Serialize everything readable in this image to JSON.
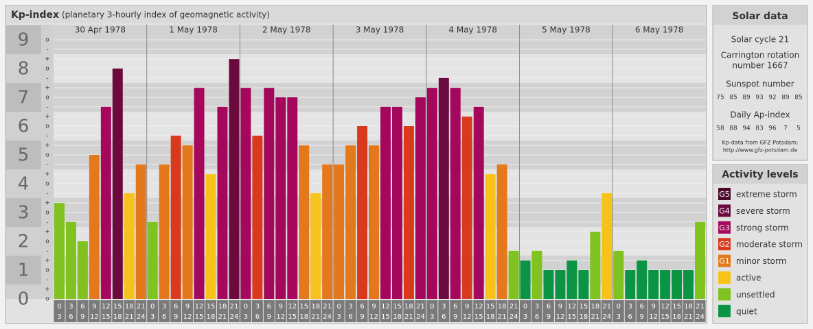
{
  "header": {
    "title": "Kp-index",
    "subtitle": "(planetary 3-hourly index of geomagnetic activity)"
  },
  "chart_data": {
    "type": "bar",
    "days": [
      "30 Apr 1978",
      "1 May 1978",
      "2 May 1978",
      "3 May 1978",
      "4 May 1978",
      "5 May 1978",
      "6 May 1978"
    ],
    "hour_ranges": [
      [
        "0",
        "3"
      ],
      [
        "3",
        "6"
      ],
      [
        "6",
        "9"
      ],
      [
        "9",
        "12"
      ],
      [
        "12",
        "15"
      ],
      [
        "15",
        "18"
      ],
      [
        "18",
        "21"
      ],
      [
        "21",
        "24"
      ]
    ],
    "values": [
      3.33,
      2.67,
      2,
      5,
      6.67,
      8,
      3.67,
      4.67,
      2.67,
      4.67,
      5.67,
      5.33,
      7.33,
      4.33,
      6.67,
      8.33,
      7.33,
      5.67,
      7.33,
      7,
      7,
      5.33,
      3.67,
      4.67,
      4.67,
      5.33,
      6,
      5.33,
      6.67,
      6.67,
      6,
      7,
      7.33,
      7.67,
      7.33,
      6.33,
      6.67,
      4.33,
      4.67,
      1.67,
      1.33,
      1.67,
      1,
      1,
      1.33,
      1,
      2.33,
      3.67,
      1.67,
      1,
      1.33,
      1,
      1,
      1,
      1,
      2.67
    ],
    "colors": [
      "#80c21f",
      "#80c21f",
      "#80c21f",
      "#e4781c",
      "#a4075b",
      "#6b0a3f",
      "#f7c31b",
      "#e4781c",
      "#80c21f",
      "#e4781c",
      "#d93a1e",
      "#e4781c",
      "#a4075b",
      "#f7c31b",
      "#a4075b",
      "#6b0a3f",
      "#a4075b",
      "#d93a1e",
      "#a4075b",
      "#a4075b",
      "#a4075b",
      "#e4781c",
      "#f7c31b",
      "#e4781c",
      "#e4781c",
      "#e4781c",
      "#d93a1e",
      "#e4781c",
      "#a4075b",
      "#a4075b",
      "#d93a1e",
      "#a4075b",
      "#a4075b",
      "#6b0a3f",
      "#a4075b",
      "#d93a1e",
      "#a4075b",
      "#f7c31b",
      "#e4781c",
      "#80c21f",
      "#0b9444",
      "#80c21f",
      "#0b9444",
      "#0b9444",
      "#0b9444",
      "#0b9444",
      "#80c21f",
      "#f7c31b",
      "#80c21f",
      "#0b9444",
      "#0b9444",
      "#0b9444",
      "#0b9444",
      "#0b9444",
      "#0b9444",
      "#80c21f"
    ],
    "ylim": [
      0,
      9
    ],
    "yticks": [
      0,
      1,
      2,
      3,
      4,
      5,
      6,
      7,
      8,
      9
    ],
    "minor_yticks": [
      {
        "value": 0,
        "label": "o"
      },
      {
        "value": 0.33,
        "label": "+"
      },
      {
        "value": 0.67,
        "label": "-"
      },
      {
        "value": 1,
        "label": "o"
      },
      {
        "value": 1.33,
        "label": "+"
      },
      {
        "value": 1.67,
        "label": "-"
      },
      {
        "value": 2,
        "label": "o"
      },
      {
        "value": 2.33,
        "label": "+"
      },
      {
        "value": 2.67,
        "label": "-"
      },
      {
        "value": 3,
        "label": "o"
      },
      {
        "value": 3.33,
        "label": "+"
      },
      {
        "value": 3.67,
        "label": "-"
      },
      {
        "value": 4,
        "label": "o"
      },
      {
        "value": 4.33,
        "label": "+"
      },
      {
        "value": 4.67,
        "label": "-"
      },
      {
        "value": 5,
        "label": "o"
      },
      {
        "value": 5.33,
        "label": "+"
      },
      {
        "value": 5.67,
        "label": "-"
      },
      {
        "value": 6,
        "label": "o"
      },
      {
        "value": 6.33,
        "label": "+"
      },
      {
        "value": 6.67,
        "label": "-"
      },
      {
        "value": 7,
        "label": "o"
      },
      {
        "value": 7.33,
        "label": "+"
      },
      {
        "value": 7.67,
        "label": "-"
      },
      {
        "value": 8,
        "label": "o"
      },
      {
        "value": 8.33,
        "label": "+"
      },
      {
        "value": 8.67,
        "label": "-"
      },
      {
        "value": 9,
        "label": "o"
      }
    ]
  },
  "solar_data": {
    "title": "Solar data",
    "cycle": "Solar cycle 21",
    "carrington": [
      "Carrington rotation",
      "number 1667"
    ],
    "sunspot_title": "Sunspot number",
    "sunspot": [
      75,
      85,
      89,
      93,
      92,
      89,
      85
    ],
    "ap_title": "Daily Ap-index",
    "ap": [
      58,
      88,
      94,
      83,
      96,
      7,
      5
    ],
    "source": "Kp-data from GFZ Potsdam:",
    "url": "http://www.gfz-potsdam.de"
  },
  "activity_levels": {
    "title": "Activity levels",
    "items": [
      {
        "code": "G5",
        "name": "extreme storm",
        "color": "#4a0a2c"
      },
      {
        "code": "G4",
        "name": "severe storm",
        "color": "#6b0a3f"
      },
      {
        "code": "G3",
        "name": "strong storm",
        "color": "#a4075b"
      },
      {
        "code": "G2",
        "name": "moderate storm",
        "color": "#d93a1e"
      },
      {
        "code": "G1",
        "name": "minor storm",
        "color": "#e4781c"
      },
      {
        "name": "active",
        "color": "#f7c31b"
      },
      {
        "name": "unsettled",
        "color": "#80c21f"
      },
      {
        "name": "quiet",
        "color": "#0b9444"
      }
    ]
  }
}
